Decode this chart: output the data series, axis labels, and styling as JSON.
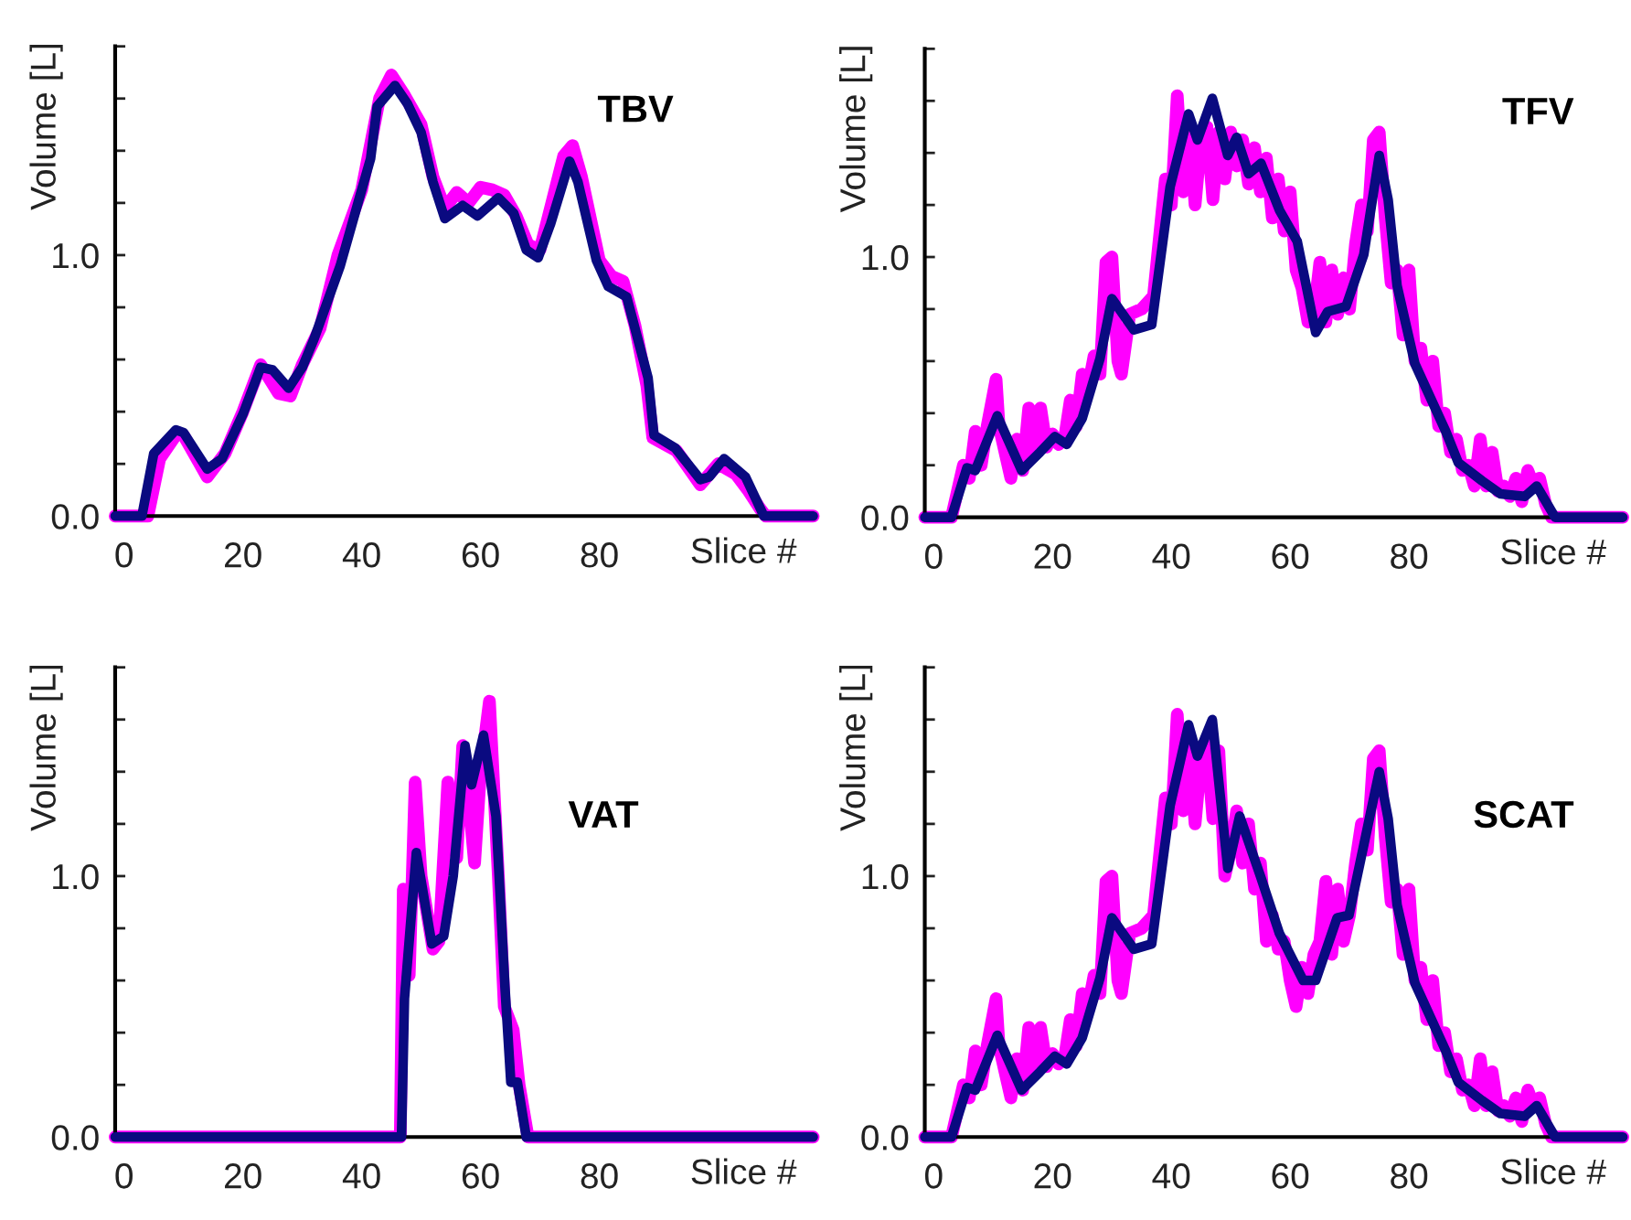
{
  "chart_data": [
    {
      "type": "line",
      "title": "TBV",
      "xlabel": "Slice #",
      "ylabel": "Volume [L]",
      "xlim": [
        -1.5,
        116
      ],
      "ylim": [
        0,
        1.8
      ],
      "xticks": [
        0,
        20,
        40,
        60,
        80
      ],
      "yticks": [
        {
          "value": 0,
          "label": "0.0"
        },
        {
          "value": 0.2,
          "label": null
        },
        {
          "value": 0.4,
          "label": null
        },
        {
          "value": 0.6,
          "label": null
        },
        {
          "value": 0.8,
          "label": null
        },
        {
          "value": 1.0,
          "label": "1.0"
        },
        {
          "value": 1.2,
          "label": null
        },
        {
          "value": 1.4,
          "label": null
        },
        {
          "value": 1.6,
          "label": null
        },
        {
          "value": 1.8,
          "label": null
        }
      ],
      "grid": false,
      "marker": "none",
      "line_style": "solid",
      "series": [
        {
          "color": "#ff00ff",
          "x": [
            -1.5,
            3,
            4,
            6,
            9,
            10,
            14,
            17,
            20,
            23,
            26,
            28,
            30,
            33,
            36,
            40,
            43,
            45,
            47,
            50,
            52,
            54,
            56,
            58,
            60,
            62,
            64,
            66,
            68,
            70,
            72,
            74,
            75.5,
            77,
            80,
            82,
            84,
            86,
            88,
            89,
            93,
            97,
            100,
            103,
            105,
            107,
            108,
            116
          ],
          "values": [
            0,
            0,
            0,
            0.22,
            0.32,
            0.31,
            0.15,
            0.24,
            0.4,
            0.58,
            0.47,
            0.46,
            0.58,
            0.72,
            1.0,
            1.25,
            1.6,
            1.69,
            1.62,
            1.5,
            1.3,
            1.18,
            1.24,
            1.2,
            1.26,
            1.25,
            1.23,
            1.15,
            1.04,
            1.02,
            1.2,
            1.38,
            1.42,
            1.3,
            0.98,
            0.92,
            0.9,
            0.73,
            0.5,
            0.3,
            0.25,
            0.12,
            0.2,
            0.16,
            0.1,
            0.03,
            0,
            0
          ]
        },
        {
          "color": "#0a0a80",
          "x": [
            -1.5,
            3,
            5,
            8.7,
            10,
            14,
            16.5,
            20,
            23,
            25,
            27.7,
            30,
            32,
            36.4,
            39.5,
            41.5,
            42.6,
            45.6,
            47.7,
            50,
            52,
            54,
            57,
            59.5,
            63,
            65.6,
            67.7,
            69.7,
            71.8,
            75,
            76.4,
            79.5,
            81.5,
            84.6,
            88.2,
            89.2,
            92.8,
            97,
            98.5,
            101,
            104.6,
            107.7,
            116
          ],
          "values": [
            0,
            0,
            0.24,
            0.33,
            0.32,
            0.18,
            0.22,
            0.39,
            0.57,
            0.56,
            0.49,
            0.57,
            0.68,
            0.96,
            1.21,
            1.37,
            1.57,
            1.65,
            1.58,
            1.47,
            1.28,
            1.14,
            1.19,
            1.15,
            1.22,
            1.16,
            1.02,
            0.99,
            1.12,
            1.36,
            1.28,
            0.98,
            0.88,
            0.84,
            0.53,
            0.31,
            0.26,
            0.14,
            0.15,
            0.22,
            0.15,
            0,
            0
          ]
        }
      ]
    },
    {
      "type": "line",
      "title": "TFV",
      "xlabel": "Slice #",
      "ylabel": "Volume [L]",
      "xlim": [
        -1.5,
        116
      ],
      "ylim": [
        0,
        1.8
      ],
      "xticks": [
        0,
        20,
        40,
        60,
        80
      ],
      "yticks": [
        {
          "value": 0,
          "label": "0.0"
        },
        {
          "value": 0.2,
          "label": null
        },
        {
          "value": 0.4,
          "label": null
        },
        {
          "value": 0.6,
          "label": null
        },
        {
          "value": 0.8,
          "label": null
        },
        {
          "value": 1.0,
          "label": "1.0"
        },
        {
          "value": 1.2,
          "label": null
        },
        {
          "value": 1.4,
          "label": null
        },
        {
          "value": 1.6,
          "label": null
        },
        {
          "value": 1.8,
          "label": null
        }
      ],
      "grid": false,
      "marker": "none",
      "line_style": "solid",
      "series": [
        {
          "color": "#ff00ff",
          "x": [
            -1.5,
            3,
            5,
            6,
            7,
            8,
            9,
            10.5,
            11,
            12,
            13,
            14,
            15,
            16,
            17,
            18,
            19,
            20,
            21,
            22,
            23,
            24,
            25,
            26,
            27,
            28,
            29,
            30,
            31,
            31.6,
            33,
            35,
            37,
            39,
            40,
            41,
            42,
            43,
            44,
            45,
            46,
            47,
            48,
            49,
            50,
            51,
            52,
            53,
            54,
            55,
            56,
            57,
            58,
            59,
            60,
            61,
            62,
            63,
            64,
            65,
            66,
            67,
            68,
            69,
            70,
            71,
            72,
            73,
            74,
            75,
            76,
            77,
            78,
            79,
            80,
            81,
            82,
            83,
            84,
            85,
            86,
            87,
            88,
            89,
            90,
            91,
            92,
            93,
            94,
            95,
            96,
            97,
            98,
            99,
            100,
            101,
            102,
            103,
            104,
            116
          ],
          "values": [
            0,
            0,
            0.2,
            0.15,
            0.33,
            0.2,
            0.35,
            0.53,
            0.35,
            0.25,
            0.15,
            0.3,
            0.18,
            0.42,
            0.25,
            0.42,
            0.27,
            0.32,
            0.28,
            0.3,
            0.45,
            0.35,
            0.55,
            0.5,
            0.62,
            0.55,
            0.98,
            1.0,
            0.6,
            0.55,
            0.78,
            0.8,
            0.85,
            1.3,
            1.2,
            1.62,
            1.25,
            1.5,
            1.2,
            1.45,
            1.5,
            1.22,
            1.48,
            1.3,
            1.48,
            1.35,
            1.45,
            1.28,
            1.42,
            1.25,
            1.38,
            1.15,
            1.3,
            1.1,
            1.25,
            0.95,
            0.88,
            0.75,
            0.78,
            0.98,
            0.75,
            0.95,
            0.78,
            0.92,
            0.8,
            1.05,
            1.2,
            1.1,
            1.45,
            1.48,
            1.15,
            0.9,
            0.95,
            0.7,
            0.95,
            0.6,
            0.65,
            0.45,
            0.6,
            0.35,
            0.4,
            0.25,
            0.3,
            0.18,
            0.2,
            0.12,
            0.3,
            0.12,
            0.25,
            0.1,
            0.12,
            0.08,
            0.15,
            0.06,
            0.18,
            0.12,
            0.15,
            0.05,
            0,
            0
          ]
        },
        {
          "color": "#0a0a80",
          "x": [
            -1.5,
            3,
            5.6,
            7,
            10.7,
            14.8,
            17.9,
            20.4,
            22.4,
            25,
            28,
            30,
            33.7,
            36.7,
            39.8,
            42.9,
            44.4,
            46.9,
            49.5,
            51,
            53,
            55.1,
            58.2,
            61.2,
            64.3,
            66.3,
            69.4,
            72.4,
            75,
            76.5,
            78,
            81,
            86.2,
            88.3,
            92.3,
            95.4,
            99.5,
            101.5,
            104.6,
            116
          ],
          "values": [
            0,
            0,
            0.19,
            0.18,
            0.39,
            0.18,
            0.25,
            0.31,
            0.28,
            0.38,
            0.61,
            0.84,
            0.72,
            0.74,
            1.27,
            1.55,
            1.45,
            1.61,
            1.39,
            1.46,
            1.32,
            1.36,
            1.18,
            1.06,
            0.71,
            0.79,
            0.81,
            1.01,
            1.39,
            1.22,
            0.89,
            0.59,
            0.33,
            0.21,
            0.14,
            0.09,
            0.08,
            0.12,
            0,
            0
          ]
        }
      ]
    },
    {
      "type": "line",
      "title": "VAT",
      "xlabel": "Slice #",
      "ylabel": "Volume [L]",
      "xlim": [
        -1.5,
        116
      ],
      "ylim": [
        0,
        1.8
      ],
      "xticks": [
        0,
        20,
        40,
        60,
        80
      ],
      "yticks": [
        {
          "value": 0,
          "label": "0.0"
        },
        {
          "value": 0.2,
          "label": null
        },
        {
          "value": 0.4,
          "label": null
        },
        {
          "value": 0.6,
          "label": null
        },
        {
          "value": 0.8,
          "label": null
        },
        {
          "value": 1.0,
          "label": "1.0"
        },
        {
          "value": 1.2,
          "label": null
        },
        {
          "value": 1.4,
          "label": null
        },
        {
          "value": 1.6,
          "label": null
        },
        {
          "value": 1.8,
          "label": null
        }
      ],
      "grid": false,
      "marker": "none",
      "line_style": "solid",
      "series": [
        {
          "color": "#ff00ff",
          "x": [
            -1.5,
            46.5,
            47,
            48,
            49,
            50,
            52,
            53,
            54.5,
            56,
            57,
            58,
            59,
            60,
            61.5,
            63,
            64,
            65.5,
            66.5,
            68,
            116
          ],
          "values": [
            0,
            0,
            0.95,
            0.62,
            1.36,
            1.0,
            0.72,
            0.75,
            1.36,
            1.07,
            1.5,
            1.3,
            1.05,
            1.4,
            1.67,
            1.0,
            0.5,
            0.41,
            0.2,
            0,
            0
          ]
        },
        {
          "color": "#0a0a80",
          "x": [
            -1.5,
            46.7,
            47.2,
            49.2,
            51.8,
            53.8,
            55.4,
            57.4,
            58.5,
            60.5,
            62.6,
            64.1,
            65.1,
            66.2,
            67.7,
            116
          ],
          "values": [
            0,
            0,
            0.53,
            1.09,
            0.74,
            0.77,
            1.0,
            1.5,
            1.35,
            1.54,
            1.23,
            0.58,
            0.21,
            0.21,
            0,
            0
          ]
        }
      ]
    },
    {
      "type": "line",
      "title": "SCAT",
      "xlabel": "Slice #",
      "ylabel": "Volume [L]",
      "xlim": [
        -1.5,
        116
      ],
      "ylim": [
        0,
        1.8
      ],
      "xticks": [
        0,
        20,
        40,
        60,
        80
      ],
      "yticks": [
        {
          "value": 0,
          "label": "0.0"
        },
        {
          "value": 0.2,
          "label": null
        },
        {
          "value": 0.4,
          "label": null
        },
        {
          "value": 0.6,
          "label": null
        },
        {
          "value": 0.8,
          "label": null
        },
        {
          "value": 1.0,
          "label": "1.0"
        },
        {
          "value": 1.2,
          "label": null
        },
        {
          "value": 1.4,
          "label": null
        },
        {
          "value": 1.6,
          "label": null
        },
        {
          "value": 1.8,
          "label": null
        }
      ],
      "grid": false,
      "marker": "none",
      "line_style": "solid",
      "series": [
        {
          "color": "#ff00ff",
          "x": [
            -1.5,
            3,
            5,
            6,
            7,
            8,
            9,
            10.5,
            11,
            12,
            13,
            14,
            15,
            16,
            17,
            18,
            19,
            20,
            21,
            22,
            23,
            24,
            25,
            26,
            27,
            28,
            29,
            30,
            31,
            31.6,
            33,
            35,
            37,
            39,
            40,
            41,
            42,
            43,
            44,
            45,
            46,
            47,
            48,
            49,
            50,
            51,
            52,
            53,
            54,
            55,
            56,
            57,
            58,
            59,
            60,
            61,
            62,
            63,
            64,
            65,
            66,
            67,
            68,
            69,
            70,
            71,
            72,
            73,
            74,
            75,
            76,
            77,
            78,
            79,
            80,
            81,
            82,
            83,
            84,
            85,
            86,
            87,
            88,
            89,
            90,
            91,
            92,
            93,
            94,
            95,
            96,
            97,
            98,
            99,
            100,
            101,
            102,
            103,
            104,
            116
          ],
          "values": [
            0,
            0,
            0.2,
            0.15,
            0.33,
            0.2,
            0.35,
            0.53,
            0.35,
            0.25,
            0.15,
            0.3,
            0.18,
            0.42,
            0.25,
            0.42,
            0.27,
            0.32,
            0.28,
            0.3,
            0.45,
            0.35,
            0.55,
            0.5,
            0.62,
            0.55,
            0.98,
            1.0,
            0.6,
            0.55,
            0.78,
            0.8,
            0.85,
            1.3,
            1.2,
            1.62,
            1.25,
            1.5,
            1.2,
            1.45,
            1.5,
            1.22,
            1.48,
            1.0,
            1.1,
            1.25,
            1.05,
            1.2,
            0.95,
            1.05,
            0.75,
            0.85,
            0.72,
            0.75,
            0.6,
            0.5,
            0.65,
            0.55,
            0.7,
            0.75,
            0.98,
            0.7,
            0.95,
            0.75,
            0.85,
            1.05,
            1.2,
            1.1,
            1.45,
            1.48,
            1.15,
            0.9,
            0.95,
            0.7,
            0.95,
            0.6,
            0.65,
            0.45,
            0.6,
            0.35,
            0.4,
            0.25,
            0.3,
            0.18,
            0.2,
            0.12,
            0.3,
            0.12,
            0.25,
            0.1,
            0.12,
            0.08,
            0.15,
            0.06,
            0.18,
            0.12,
            0.15,
            0.05,
            0,
            0
          ]
        },
        {
          "color": "#0a0a80",
          "x": [
            -1.5,
            3,
            5.6,
            7,
            10.7,
            14.8,
            17.9,
            20.4,
            22.4,
            25,
            28,
            30,
            33.7,
            36.7,
            39.8,
            42.9,
            44.4,
            46.9,
            49.5,
            51.5,
            55,
            58.2,
            62.2,
            64.3,
            67.9,
            69.9,
            75,
            76.5,
            78,
            81,
            86.2,
            88.3,
            92.3,
            95.4,
            99.5,
            101.5,
            104.6,
            116
          ],
          "values": [
            0,
            0,
            0.19,
            0.18,
            0.39,
            0.18,
            0.25,
            0.31,
            0.28,
            0.38,
            0.61,
            0.84,
            0.72,
            0.74,
            1.27,
            1.58,
            1.46,
            1.6,
            1.03,
            1.23,
            1.0,
            0.78,
            0.6,
            0.6,
            0.84,
            0.85,
            1.4,
            1.22,
            0.89,
            0.59,
            0.33,
            0.21,
            0.14,
            0.09,
            0.08,
            0.12,
            0,
            0
          ]
        }
      ]
    }
  ]
}
